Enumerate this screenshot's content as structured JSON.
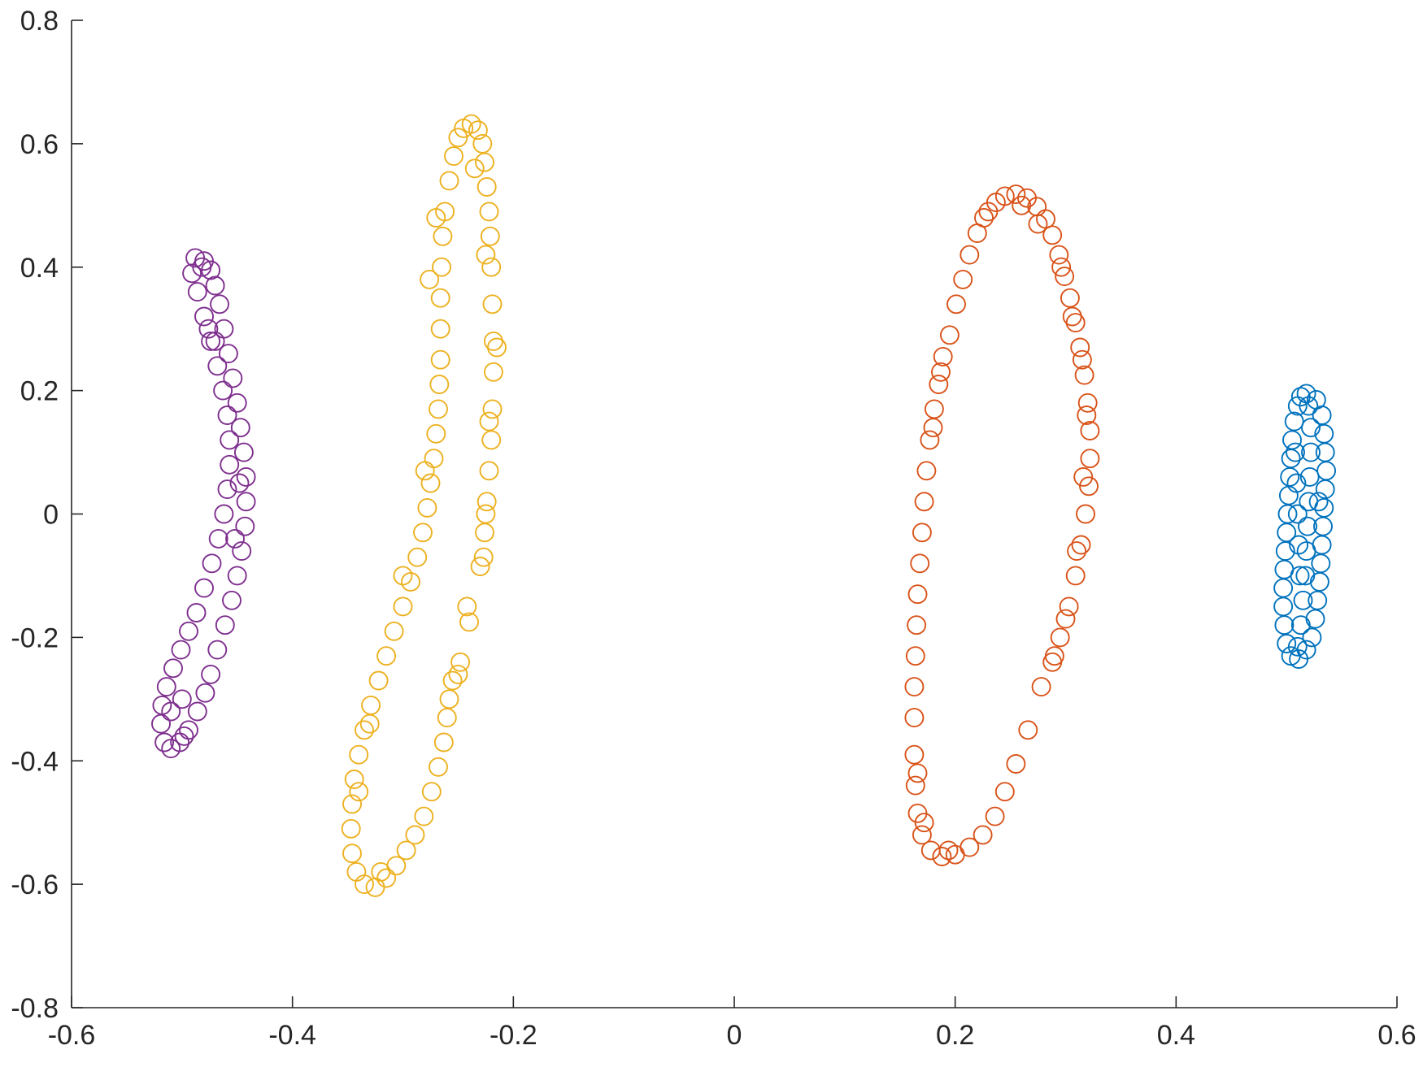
{
  "chart_data": {
    "type": "scatter",
    "title": "",
    "xlabel": "",
    "ylabel": "",
    "xlim": [
      -0.6,
      0.6
    ],
    "ylim": [
      -0.8,
      0.8
    ],
    "xticks": [
      -0.6,
      -0.4,
      -0.2,
      0,
      0.2,
      0.4,
      0.6
    ],
    "yticks": [
      -0.8,
      -0.6,
      -0.4,
      -0.2,
      0,
      0.2,
      0.4,
      0.6,
      0.8
    ],
    "xtick_labels": [
      "-0.6",
      "-0.4",
      "-0.2",
      "0",
      "0.2",
      "0.4",
      "0.6"
    ],
    "ytick_labels": [
      "-0.8",
      "-0.6",
      "-0.4",
      "-0.2",
      "0",
      "0.2",
      "0.4",
      "0.6",
      "0.8"
    ],
    "grid": false,
    "legend": "none",
    "marker": "open-circle",
    "series": [
      {
        "color": "#0072BD",
        "points": [
          [
            0.518,
            0.195
          ],
          [
            0.527,
            0.185
          ],
          [
            0.532,
            0.16
          ],
          [
            0.534,
            0.13
          ],
          [
            0.535,
            0.1
          ],
          [
            0.536,
            0.07
          ],
          [
            0.535,
            0.04
          ],
          [
            0.534,
            0.01
          ],
          [
            0.533,
            -0.02
          ],
          [
            0.532,
            -0.05
          ],
          [
            0.531,
            -0.08
          ],
          [
            0.53,
            -0.11
          ],
          [
            0.528,
            -0.14
          ],
          [
            0.526,
            -0.17
          ],
          [
            0.523,
            -0.2
          ],
          [
            0.518,
            -0.22
          ],
          [
            0.511,
            -0.235
          ],
          [
            0.504,
            -0.23
          ],
          [
            0.5,
            -0.21
          ],
          [
            0.498,
            -0.18
          ],
          [
            0.497,
            -0.15
          ],
          [
            0.497,
            -0.12
          ],
          [
            0.498,
            -0.09
          ],
          [
            0.499,
            -0.06
          ],
          [
            0.5,
            -0.03
          ],
          [
            0.501,
            0.0
          ],
          [
            0.502,
            0.03
          ],
          [
            0.503,
            0.06
          ],
          [
            0.504,
            0.09
          ],
          [
            0.505,
            0.12
          ],
          [
            0.507,
            0.15
          ],
          [
            0.51,
            0.175
          ],
          [
            0.513,
            0.19
          ],
          [
            0.52,
            0.175
          ],
          [
            0.522,
            0.14
          ],
          [
            0.522,
            0.1
          ],
          [
            0.521,
            0.06
          ],
          [
            0.52,
            0.02
          ],
          [
            0.519,
            -0.02
          ],
          [
            0.518,
            -0.06
          ],
          [
            0.517,
            -0.1
          ],
          [
            0.515,
            -0.14
          ],
          [
            0.513,
            -0.18
          ],
          [
            0.51,
            -0.215
          ],
          [
            0.508,
            0.1
          ],
          [
            0.509,
            0.05
          ],
          [
            0.51,
            0.0
          ],
          [
            0.511,
            -0.05
          ],
          [
            0.512,
            -0.1
          ],
          [
            0.529,
            0.02
          ]
        ]
      },
      {
        "color": "#D95319",
        "points": [
          [
            0.23,
            0.49
          ],
          [
            0.237,
            0.505
          ],
          [
            0.245,
            0.515
          ],
          [
            0.255,
            0.518
          ],
          [
            0.265,
            0.512
          ],
          [
            0.274,
            0.498
          ],
          [
            0.282,
            0.478
          ],
          [
            0.288,
            0.452
          ],
          [
            0.294,
            0.42
          ],
          [
            0.299,
            0.385
          ],
          [
            0.304,
            0.35
          ],
          [
            0.309,
            0.31
          ],
          [
            0.313,
            0.27
          ],
          [
            0.317,
            0.225
          ],
          [
            0.32,
            0.18
          ],
          [
            0.322,
            0.135
          ],
          [
            0.322,
            0.09
          ],
          [
            0.321,
            0.045
          ],
          [
            0.318,
            0.0
          ],
          [
            0.314,
            -0.05
          ],
          [
            0.309,
            -0.1
          ],
          [
            0.303,
            -0.15
          ],
          [
            0.295,
            -0.2
          ],
          [
            0.288,
            -0.24
          ],
          [
            0.278,
            -0.28
          ],
          [
            0.266,
            -0.35
          ],
          [
            0.255,
            -0.405
          ],
          [
            0.245,
            -0.45
          ],
          [
            0.236,
            -0.49
          ],
          [
            0.225,
            -0.52
          ],
          [
            0.213,
            -0.54
          ],
          [
            0.2,
            -0.552
          ],
          [
            0.188,
            -0.555
          ],
          [
            0.178,
            -0.545
          ],
          [
            0.17,
            -0.52
          ],
          [
            0.166,
            -0.485
          ],
          [
            0.164,
            -0.44
          ],
          [
            0.163,
            -0.39
          ],
          [
            0.163,
            -0.33
          ],
          [
            0.163,
            -0.28
          ],
          [
            0.164,
            -0.23
          ],
          [
            0.165,
            -0.18
          ],
          [
            0.166,
            -0.13
          ],
          [
            0.168,
            -0.08
          ],
          [
            0.17,
            -0.03
          ],
          [
            0.172,
            0.02
          ],
          [
            0.174,
            0.07
          ],
          [
            0.177,
            0.12
          ],
          [
            0.181,
            0.17
          ],
          [
            0.185,
            0.21
          ],
          [
            0.189,
            0.255
          ],
          [
            0.195,
            0.29
          ],
          [
            0.201,
            0.34
          ],
          [
            0.207,
            0.38
          ],
          [
            0.213,
            0.42
          ],
          [
            0.22,
            0.455
          ],
          [
            0.226,
            0.48
          ],
          [
            0.26,
            0.5
          ],
          [
            0.275,
            0.47
          ],
          [
            0.296,
            0.4
          ],
          [
            0.306,
            0.32
          ],
          [
            0.315,
            0.25
          ],
          [
            0.319,
            0.16
          ],
          [
            0.316,
            0.06
          ],
          [
            0.31,
            -0.06
          ],
          [
            0.3,
            -0.17
          ],
          [
            0.29,
            -0.23
          ],
          [
            0.194,
            -0.545
          ],
          [
            0.172,
            -0.5
          ],
          [
            0.166,
            -0.42
          ],
          [
            0.18,
            0.14
          ],
          [
            0.187,
            0.23
          ]
        ]
      },
      {
        "color": "#EDB120",
        "points": [
          [
            -0.245,
            0.625
          ],
          [
            -0.238,
            0.632
          ],
          [
            -0.232,
            0.622
          ],
          [
            -0.228,
            0.6
          ],
          [
            -0.226,
            0.57
          ],
          [
            -0.224,
            0.53
          ],
          [
            -0.222,
            0.49
          ],
          [
            -0.221,
            0.45
          ],
          [
            -0.22,
            0.4
          ],
          [
            -0.219,
            0.34
          ],
          [
            -0.218,
            0.28
          ],
          [
            -0.218,
            0.23
          ],
          [
            -0.219,
            0.17
          ],
          [
            -0.22,
            0.12
          ],
          [
            -0.222,
            0.07
          ],
          [
            -0.224,
            0.02
          ],
          [
            -0.226,
            -0.03
          ],
          [
            -0.227,
            -0.07
          ],
          [
            -0.23,
            -0.085
          ],
          [
            -0.242,
            -0.15
          ],
          [
            -0.24,
            -0.175
          ],
          [
            -0.248,
            -0.24
          ],
          [
            -0.255,
            -0.27
          ],
          [
            -0.258,
            -0.3
          ],
          [
            -0.26,
            -0.33
          ],
          [
            -0.263,
            -0.37
          ],
          [
            -0.268,
            -0.41
          ],
          [
            -0.274,
            -0.45
          ],
          [
            -0.281,
            -0.49
          ],
          [
            -0.289,
            -0.52
          ],
          [
            -0.297,
            -0.545
          ],
          [
            -0.306,
            -0.57
          ],
          [
            -0.315,
            -0.59
          ],
          [
            -0.325,
            -0.605
          ],
          [
            -0.335,
            -0.6
          ],
          [
            -0.342,
            -0.58
          ],
          [
            -0.346,
            -0.55
          ],
          [
            -0.347,
            -0.51
          ],
          [
            -0.346,
            -0.47
          ],
          [
            -0.344,
            -0.43
          ],
          [
            -0.34,
            -0.39
          ],
          [
            -0.335,
            -0.35
          ],
          [
            -0.329,
            -0.31
          ],
          [
            -0.322,
            -0.27
          ],
          [
            -0.315,
            -0.23
          ],
          [
            -0.308,
            -0.19
          ],
          [
            -0.3,
            -0.15
          ],
          [
            -0.293,
            -0.11
          ],
          [
            -0.287,
            -0.07
          ],
          [
            -0.282,
            -0.03
          ],
          [
            -0.278,
            0.01
          ],
          [
            -0.275,
            0.05
          ],
          [
            -0.272,
            0.09
          ],
          [
            -0.27,
            0.13
          ],
          [
            -0.268,
            0.17
          ],
          [
            -0.267,
            0.21
          ],
          [
            -0.266,
            0.25
          ],
          [
            -0.266,
            0.3
          ],
          [
            -0.266,
            0.35
          ],
          [
            -0.265,
            0.4
          ],
          [
            -0.264,
            0.45
          ],
          [
            -0.262,
            0.49
          ],
          [
            -0.258,
            0.54
          ],
          [
            -0.254,
            0.58
          ],
          [
            -0.25,
            0.61
          ],
          [
            -0.235,
            0.56
          ],
          [
            -0.225,
            0.42
          ],
          [
            -0.215,
            0.27
          ],
          [
            -0.222,
            0.15
          ],
          [
            -0.225,
            0.0
          ],
          [
            -0.25,
            -0.26
          ],
          [
            -0.33,
            -0.34
          ],
          [
            -0.3,
            -0.1
          ],
          [
            -0.28,
            0.07
          ],
          [
            -0.276,
            0.38
          ],
          [
            -0.27,
            0.48
          ],
          [
            -0.34,
            -0.45
          ],
          [
            -0.32,
            -0.58
          ]
        ]
      },
      {
        "color": "#7E2F8E",
        "points": [
          [
            -0.488,
            0.415
          ],
          [
            -0.48,
            0.41
          ],
          [
            -0.474,
            0.395
          ],
          [
            -0.47,
            0.37
          ],
          [
            -0.466,
            0.34
          ],
          [
            -0.462,
            0.3
          ],
          [
            -0.458,
            0.26
          ],
          [
            -0.454,
            0.22
          ],
          [
            -0.45,
            0.18
          ],
          [
            -0.447,
            0.14
          ],
          [
            -0.444,
            0.1
          ],
          [
            -0.442,
            0.06
          ],
          [
            -0.442,
            0.02
          ],
          [
            -0.443,
            -0.02
          ],
          [
            -0.446,
            -0.06
          ],
          [
            -0.45,
            -0.1
          ],
          [
            -0.455,
            -0.14
          ],
          [
            -0.461,
            -0.18
          ],
          [
            -0.468,
            -0.22
          ],
          [
            -0.474,
            -0.26
          ],
          [
            -0.479,
            -0.29
          ],
          [
            -0.486,
            -0.32
          ],
          [
            -0.494,
            -0.35
          ],
          [
            -0.502,
            -0.37
          ],
          [
            -0.51,
            -0.38
          ],
          [
            -0.516,
            -0.37
          ],
          [
            -0.519,
            -0.34
          ],
          [
            -0.518,
            -0.31
          ],
          [
            -0.514,
            -0.28
          ],
          [
            -0.508,
            -0.25
          ],
          [
            -0.501,
            -0.22
          ],
          [
            -0.494,
            -0.19
          ],
          [
            -0.487,
            -0.16
          ],
          [
            -0.48,
            -0.12
          ],
          [
            -0.473,
            -0.08
          ],
          [
            -0.467,
            -0.04
          ],
          [
            -0.462,
            0.0
          ],
          [
            -0.459,
            0.04
          ],
          [
            -0.457,
            0.08
          ],
          [
            -0.457,
            0.12
          ],
          [
            -0.459,
            0.16
          ],
          [
            -0.463,
            0.2
          ],
          [
            -0.468,
            0.24
          ],
          [
            -0.474,
            0.28
          ],
          [
            -0.48,
            0.32
          ],
          [
            -0.486,
            0.36
          ],
          [
            -0.491,
            0.39
          ],
          [
            -0.482,
            0.4
          ],
          [
            -0.476,
            0.3
          ],
          [
            -0.47,
            0.28
          ],
          [
            -0.448,
            0.05
          ],
          [
            -0.452,
            -0.04
          ],
          [
            -0.5,
            -0.3
          ],
          [
            -0.51,
            -0.32
          ],
          [
            -0.498,
            -0.36
          ]
        ]
      }
    ]
  }
}
